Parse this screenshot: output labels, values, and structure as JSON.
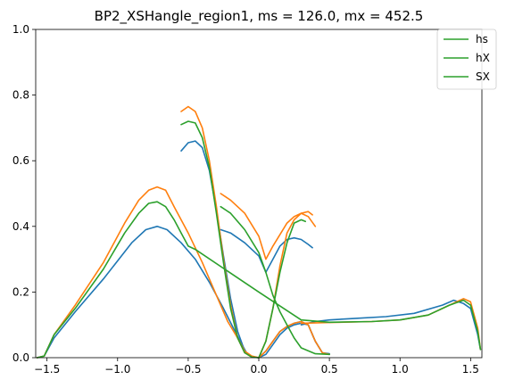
{
  "chart_data": {
    "type": "line",
    "title": "BP2_XSHangle_region1, ms = 126.0, mx = 452.5",
    "xlabel": "",
    "ylabel": "",
    "xlim": [
      -1.58,
      1.58
    ],
    "ylim": [
      0.0,
      1.0
    ],
    "xticks": [
      -1.5,
      -1.0,
      -0.5,
      0.0,
      0.5,
      1.0,
      1.5
    ],
    "xtick_labels": [
      "−1.5",
      "−1.0",
      "−0.5",
      "0.0",
      "0.5",
      "1.0",
      "1.5"
    ],
    "yticks": [
      0.0,
      0.2,
      0.4,
      0.6,
      0.8,
      1.0
    ],
    "ytick_labels": [
      "0.0",
      "0.2",
      "0.4",
      "0.6",
      "0.8",
      "1.0"
    ],
    "grid": false,
    "legend_position": "top-right",
    "legend": [
      {
        "label": "hs",
        "color": "#2ca02c"
      },
      {
        "label": "hX",
        "color": "#2ca02c"
      },
      {
        "label": "SX",
        "color": "#2ca02c"
      }
    ],
    "series": [
      {
        "color": "#1f77b4",
        "x": [
          -1.57,
          -1.52,
          -1.45,
          -1.3,
          -1.1,
          -0.9,
          -0.8,
          -0.72,
          -0.65,
          -0.55,
          -0.45,
          -0.35,
          -0.25,
          -0.18,
          -0.12,
          -0.08,
          -0.05,
          0.0,
          0.05,
          0.1,
          0.15,
          0.2,
          0.25,
          0.3,
          0.35,
          0.4,
          0.45,
          0.5
        ],
        "y": [
          0.0,
          0.005,
          0.06,
          0.14,
          0.24,
          0.35,
          0.39,
          0.4,
          0.39,
          0.35,
          0.3,
          0.23,
          0.15,
          0.09,
          0.04,
          0.01,
          0.003,
          0.0,
          0.02,
          0.05,
          0.08,
          0.095,
          0.105,
          0.11,
          0.1,
          0.05,
          0.015,
          0.01
        ]
      },
      {
        "color": "#1f77b4",
        "x": [
          -0.55,
          -0.5,
          -0.45,
          -0.4,
          -0.35,
          -0.3,
          -0.25,
          -0.2,
          -0.15,
          -0.1,
          -0.05,
          0.0,
          0.05,
          0.1,
          0.15,
          0.2,
          0.25,
          0.3,
          0.35,
          0.4,
          0.45,
          0.5
        ],
        "y": [
          0.63,
          0.655,
          0.66,
          0.64,
          0.57,
          0.45,
          0.31,
          0.18,
          0.08,
          0.02,
          0.003,
          0.0,
          0.01,
          0.04,
          0.07,
          0.09,
          0.1,
          0.105,
          0.1,
          0.05,
          0.015,
          0.012
        ]
      },
      {
        "color": "#1f77b4",
        "x": [
          -0.27,
          -0.2,
          -0.1,
          0.0,
          0.05,
          0.1,
          0.15,
          0.2,
          0.25,
          0.3,
          0.35,
          0.38
        ],
        "y": [
          0.39,
          0.38,
          0.35,
          0.31,
          0.26,
          0.3,
          0.34,
          0.36,
          0.365,
          0.36,
          0.345,
          0.335
        ]
      },
      {
        "color": "#1f77b4",
        "x": [
          0.3,
          0.4,
          0.5,
          0.7,
          0.9,
          1.1,
          1.3,
          1.38,
          1.45,
          1.5,
          1.55,
          1.57
        ],
        "y": [
          0.1,
          0.11,
          0.115,
          0.12,
          0.125,
          0.135,
          0.16,
          0.175,
          0.165,
          0.15,
          0.07,
          0.025
        ]
      },
      {
        "color": "#ff7f0e",
        "x": [
          -1.57,
          -1.52,
          -1.45,
          -1.3,
          -1.1,
          -0.95,
          -0.85,
          -0.78,
          -0.72,
          -0.66,
          -0.6,
          -0.5,
          -0.4,
          -0.3,
          -0.22,
          -0.15,
          -0.1,
          -0.05,
          0.0,
          0.05,
          0.1,
          0.15,
          0.2,
          0.25,
          0.3,
          0.35,
          0.4,
          0.45,
          0.5
        ],
        "y": [
          0.0,
          0.005,
          0.07,
          0.16,
          0.29,
          0.41,
          0.48,
          0.51,
          0.52,
          0.51,
          0.46,
          0.38,
          0.29,
          0.19,
          0.11,
          0.06,
          0.02,
          0.005,
          0.0,
          0.02,
          0.05,
          0.08,
          0.095,
          0.105,
          0.11,
          0.1,
          0.05,
          0.015,
          0.01
        ]
      },
      {
        "color": "#ff7f0e",
        "x": [
          -0.55,
          -0.5,
          -0.45,
          -0.4,
          -0.35,
          -0.3,
          -0.25,
          -0.2,
          -0.15,
          -0.1,
          -0.05,
          0.0,
          0.05,
          0.1,
          0.15,
          0.2,
          0.25,
          0.3,
          0.35,
          0.4
        ],
        "y": [
          0.75,
          0.765,
          0.75,
          0.7,
          0.6,
          0.46,
          0.3,
          0.16,
          0.06,
          0.015,
          0.002,
          0.0,
          0.05,
          0.15,
          0.28,
          0.38,
          0.42,
          0.44,
          0.43,
          0.4
        ]
      },
      {
        "color": "#ff7f0e",
        "x": [
          -0.27,
          -0.2,
          -0.1,
          0.0,
          0.05,
          0.1,
          0.2,
          0.25,
          0.3,
          0.35,
          0.38
        ],
        "y": [
          0.5,
          0.48,
          0.44,
          0.37,
          0.3,
          0.34,
          0.41,
          0.43,
          0.44,
          0.445,
          0.435
        ]
      },
      {
        "color": "#ff7f0e",
        "x": [
          0.3,
          0.5,
          0.8,
          1.0,
          1.2,
          1.35,
          1.45,
          1.5,
          1.55,
          1.57
        ],
        "y": [
          0.105,
          0.107,
          0.11,
          0.115,
          0.13,
          0.16,
          0.18,
          0.17,
          0.09,
          0.025
        ]
      },
      {
        "color": "#2ca02c",
        "x": [
          -1.57,
          -1.52,
          -1.45,
          -1.3,
          -1.1,
          -0.95,
          -0.85,
          -0.78,
          -0.72,
          -0.66,
          -0.6,
          -0.55,
          -0.5,
          -0.45,
          0.0,
          0.3,
          0.5,
          0.8,
          1.0,
          1.2,
          1.35,
          1.45,
          1.5,
          1.55,
          1.57
        ],
        "y": [
          0.0,
          0.005,
          0.07,
          0.15,
          0.27,
          0.38,
          0.44,
          0.47,
          0.475,
          0.46,
          0.42,
          0.38,
          0.34,
          0.33,
          0.2,
          0.115,
          0.108,
          0.11,
          0.115,
          0.13,
          0.16,
          0.175,
          0.16,
          0.08,
          0.025
        ]
      },
      {
        "color": "#2ca02c",
        "x": [
          -0.55,
          -0.5,
          -0.45,
          -0.4,
          -0.35,
          -0.3,
          -0.25,
          -0.2,
          -0.15,
          -0.1,
          -0.05,
          0.0,
          0.05,
          0.1,
          0.15,
          0.2,
          0.25,
          0.3,
          0.33
        ],
        "y": [
          0.71,
          0.72,
          0.715,
          0.67,
          0.58,
          0.44,
          0.29,
          0.15,
          0.06,
          0.015,
          0.002,
          0.0,
          0.05,
          0.15,
          0.26,
          0.35,
          0.41,
          0.42,
          0.415
        ]
      },
      {
        "color": "#2ca02c",
        "x": [
          -0.27,
          -0.2,
          -0.1,
          0.0,
          0.05,
          0.1,
          0.15,
          0.2,
          0.25,
          0.3,
          0.4,
          0.5
        ],
        "y": [
          0.46,
          0.44,
          0.39,
          0.32,
          0.26,
          0.19,
          0.14,
          0.1,
          0.06,
          0.03,
          0.012,
          0.01
        ]
      }
    ]
  }
}
